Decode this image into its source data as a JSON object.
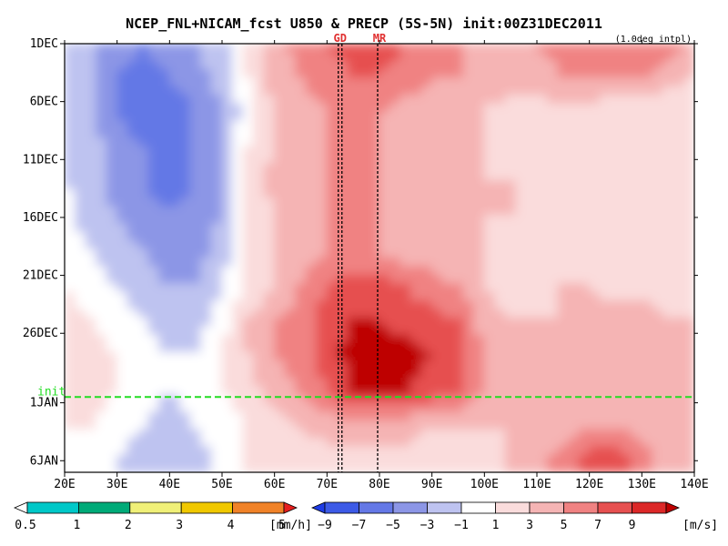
{
  "chart_data": {
    "type": "heatmap",
    "title": "NCEP_FNL+NICAM_fcst U850 & PRECP (5S-5N) init:00Z31DEC2011",
    "subtitle": "(1.0deg intpl)",
    "x_ticks": [
      "20E",
      "30E",
      "40E",
      "50E",
      "60E",
      "70E",
      "80E",
      "90E",
      "100E",
      "110E",
      "120E",
      "130E",
      "140E"
    ],
    "x_values": [
      20,
      30,
      40,
      50,
      60,
      70,
      80,
      90,
      100,
      110,
      120,
      130,
      140
    ],
    "xlim": [
      20,
      140
    ],
    "y_ticks": [
      "1DEC",
      "6DEC",
      "11DEC",
      "16DEC",
      "21DEC",
      "26DEC",
      "1JAN",
      "6JAN"
    ],
    "y_values": [
      0,
      5,
      10,
      15,
      20,
      25,
      31,
      36
    ],
    "ylim": [
      0,
      37
    ],
    "y_direction": "time increases downward",
    "annotations": [
      {
        "label": "GD",
        "x": 72.5
      },
      {
        "label": "MR",
        "x": 80
      }
    ],
    "init_label": "init",
    "init_day": 30.5,
    "precip_colorbar": {
      "unit": "[mm/h]",
      "tick_labels": [
        "0.5",
        "1",
        "2",
        "3",
        "4",
        "5"
      ],
      "colors": [
        "#ffffff",
        "#00c8c8",
        "#00aa78",
        "#f0f078",
        "#f0c800",
        "#f08228",
        "#e61e1e"
      ]
    },
    "wind_colorbar": {
      "unit": "[m/s]",
      "tick_labels": [
        "−9",
        "−7",
        "−5",
        "−3",
        "−1",
        "1",
        "3",
        "5",
        "7",
        "9"
      ],
      "colors": [
        "#1e3ce6",
        "#3c5ae6",
        "#6478e6",
        "#8c96e6",
        "#bec3f0",
        "#ffffff",
        "#fadcdc",
        "#f5b4b4",
        "#f08282",
        "#e65050",
        "#dc2828",
        "#be0000"
      ]
    },
    "u850_field": {
      "description": "U850 zonal wind (m/s), sampled by longitude (columns) and day index from 1DEC (rows)",
      "lon": [
        20,
        25,
        30,
        35,
        40,
        45,
        50,
        55,
        60,
        65,
        70,
        75,
        80,
        85,
        90,
        95,
        100,
        105,
        110,
        115,
        120,
        125,
        130,
        135,
        140
      ],
      "days": [
        0,
        3,
        6,
        9,
        12,
        15,
        18,
        21,
        24,
        27,
        30,
        33,
        36
      ],
      "u": [
        [
          -1,
          -3,
          -4,
          -5,
          -4,
          -3,
          -2,
          1,
          4,
          6,
          7,
          8,
          8,
          7,
          6,
          5,
          5,
          5,
          5,
          6,
          7,
          7,
          7,
          6,
          5
        ],
        [
          -1,
          -3,
          -5,
          -6,
          -5,
          -4,
          -2,
          1,
          4,
          5,
          6,
          7,
          7,
          6,
          5,
          5,
          4,
          4,
          4,
          5,
          5,
          5,
          5,
          4,
          3
        ],
        [
          -1,
          -3,
          -5,
          -6,
          -6,
          -5,
          -3,
          0,
          3,
          4,
          5,
          5,
          5,
          4,
          4,
          3,
          3,
          2,
          2,
          2,
          2,
          1,
          1,
          1,
          1
        ],
        [
          -1,
          -2,
          -4,
          -5,
          -6,
          -5,
          -3,
          1,
          3,
          4,
          5,
          5,
          5,
          4,
          4,
          3,
          3,
          2,
          1,
          1,
          1,
          1,
          1,
          1,
          1
        ],
        [
          -1,
          -2,
          -4,
          -5,
          -6,
          -5,
          -3,
          1,
          4,
          5,
          5,
          5,
          5,
          5,
          4,
          4,
          3,
          3,
          2,
          2,
          2,
          2,
          2,
          1,
          1
        ],
        [
          0,
          -2,
          -3,
          -4,
          -5,
          -4,
          -3,
          1,
          3,
          4,
          5,
          5,
          5,
          4,
          4,
          4,
          3,
          3,
          2,
          2,
          3,
          3,
          3,
          2,
          2
        ],
        [
          0,
          -1,
          -2,
          -3,
          -4,
          -4,
          -2,
          1,
          3,
          4,
          5,
          5,
          5,
          4,
          4,
          3,
          3,
          2,
          2,
          2,
          2,
          2,
          2,
          2,
          2
        ],
        [
          1,
          0,
          -1,
          -2,
          -3,
          -3,
          -1,
          1,
          3,
          5,
          7,
          8,
          8,
          7,
          6,
          5,
          3,
          2,
          2,
          3,
          3,
          2,
          2,
          2,
          2
        ],
        [
          2,
          1,
          0,
          -1,
          -2,
          -2,
          0,
          3,
          5,
          6,
          8,
          9,
          9,
          8,
          8,
          7,
          4,
          3,
          3,
          3,
          4,
          4,
          5,
          3,
          3
        ],
        [
          3,
          2,
          1,
          0,
          -1,
          -1,
          1,
          3,
          5,
          6,
          8,
          10,
          10,
          10,
          9,
          8,
          5,
          4,
          3,
          3,
          3,
          3,
          3,
          3,
          3
        ],
        [
          2,
          2,
          1,
          0,
          -1,
          0,
          1,
          2,
          4,
          5,
          7,
          9,
          9,
          9,
          8,
          7,
          5,
          4,
          3,
          3,
          3,
          3,
          3,
          3,
          3
        ],
        [
          1,
          1,
          0,
          -1,
          -2,
          -1,
          0,
          1,
          2,
          3,
          4,
          4,
          4,
          4,
          3,
          3,
          3,
          3,
          3,
          4,
          5,
          5,
          4,
          3,
          3
        ],
        [
          1,
          0,
          -1,
          -2,
          -3,
          -2,
          0,
          1,
          1,
          2,
          2,
          2,
          2,
          2,
          2,
          2,
          2,
          3,
          4,
          6,
          8,
          8,
          6,
          4,
          3
        ]
      ]
    }
  }
}
